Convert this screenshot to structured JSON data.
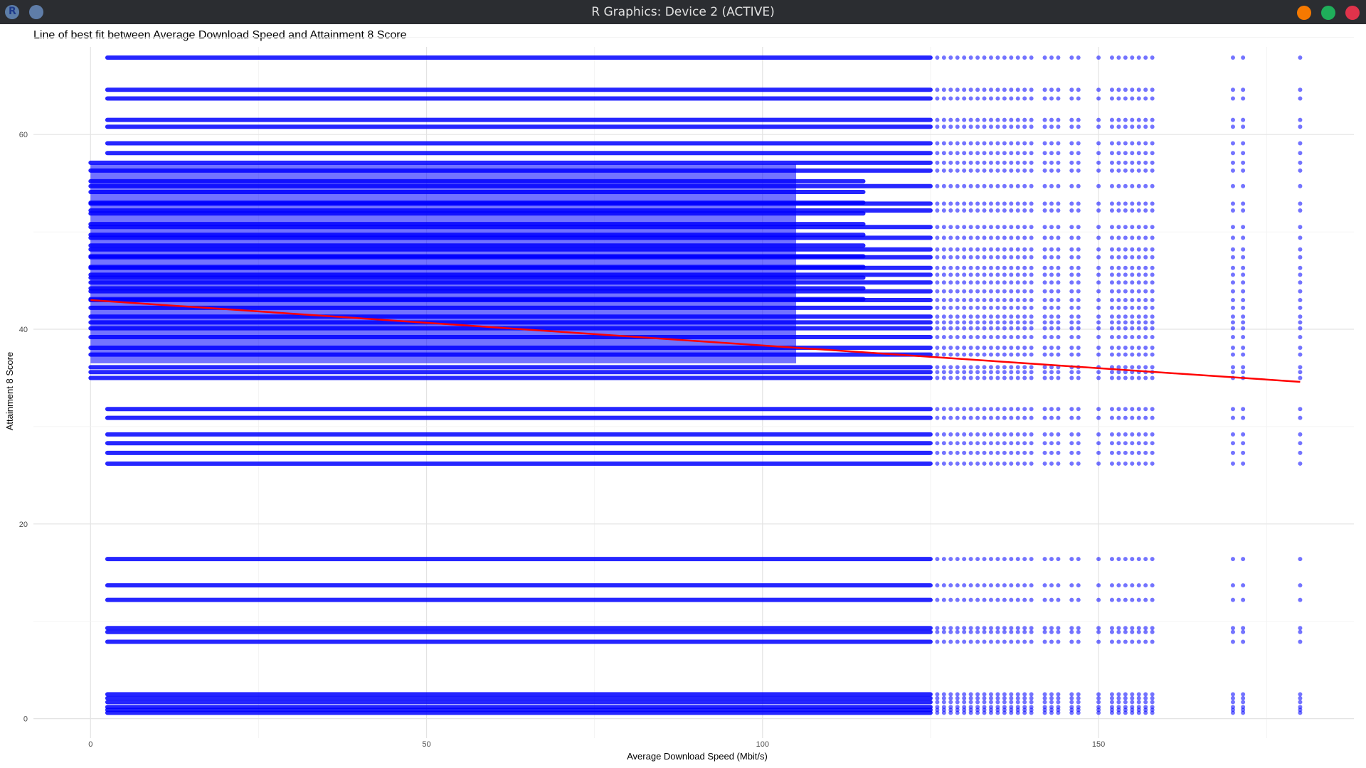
{
  "window": {
    "title": "R Graphics: Device 2 (ACTIVE)",
    "icons": [
      "r-app-icon",
      "pin-icon"
    ],
    "buttons": [
      "minimize",
      "maximize",
      "close"
    ],
    "button_colors": {
      "minimize": "#f57900",
      "maximize": "#1fae5a",
      "close": "#e0334b"
    }
  },
  "chart_data": {
    "type": "scatter",
    "title": "Line of best fit between Average Download Speed and Attainment 8 Score",
    "xlabel": "Average Download Speed (Mbit/s)",
    "ylabel": "Attainment 8 Score",
    "xlim": [
      -8.5,
      188
    ],
    "ylim": [
      -2,
      69
    ],
    "x_ticks": [
      0,
      50,
      100,
      150
    ],
    "y_ticks": [
      0,
      20,
      40,
      60
    ],
    "grid": true,
    "legend": "none",
    "point_color": "#0000ff",
    "line_color": "#ff0000",
    "score_levels": [
      0.6,
      0.9,
      1.2,
      1.7,
      2.1,
      2.5,
      7.9,
      8.9,
      9.3,
      12.2,
      13.7,
      16.4,
      26.2,
      27.3,
      28.3,
      29.2,
      30.9,
      31.8,
      35.0,
      35.6,
      36.1,
      37.4,
      38.1,
      39.2,
      40.1,
      40.7,
      41.3,
      42.2,
      43.0,
      43.9,
      44.8,
      45.6,
      46.3,
      47.4,
      48.2,
      49.4,
      50.5,
      52.2,
      52.9,
      54.7,
      56.3,
      57.1,
      58.1,
      59.1,
      60.8,
      61.5,
      63.7,
      64.6,
      67.9
    ],
    "fill_levels": [
      3.0,
      3.5,
      4.0,
      4.5,
      5.0,
      5.5,
      6.0,
      6.5,
      7.0,
      7.5,
      8.0,
      8.5
    ],
    "fill_range": [
      0,
      105
    ],
    "fill_score_range": [
      36.5,
      57
    ],
    "speed_min": 0,
    "speed_max": 180,
    "sparse_speeds": [
      126,
      127,
      128,
      129,
      130,
      131,
      132,
      133,
      134,
      135,
      136,
      137,
      138,
      139,
      140,
      142,
      143,
      144,
      146,
      147,
      150,
      152,
      153,
      154,
      155,
      156,
      157,
      158,
      170,
      171.5,
      180
    ],
    "best_fit": {
      "x": [
        0,
        180
      ],
      "y": [
        43.0,
        34.6
      ]
    }
  }
}
